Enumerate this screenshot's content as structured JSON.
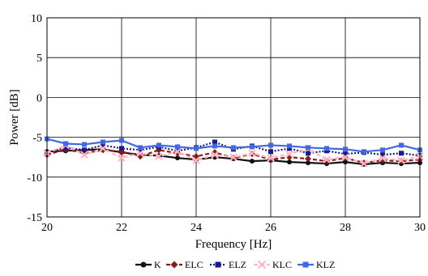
{
  "chart_data": {
    "type": "line",
    "title": "",
    "xlabel": "Frequency [Hz]",
    "ylabel": "Power [dB]",
    "xlim": [
      20,
      30
    ],
    "ylim": [
      -15,
      10
    ],
    "x_ticks": [
      "20",
      "22",
      "24",
      "26",
      "28",
      "30"
    ],
    "y_ticks": [
      "10",
      "5",
      "0",
      "-5",
      "-10",
      "-15"
    ],
    "grid": true,
    "legend_position": "bottom",
    "x": [
      20.0,
      20.5,
      21.0,
      21.5,
      22.0,
      22.5,
      23.0,
      23.5,
      24.0,
      24.5,
      25.0,
      25.5,
      26.0,
      26.5,
      27.0,
      27.5,
      28.0,
      28.5,
      29.0,
      29.5,
      30.0
    ],
    "series": [
      {
        "name": "K",
        "color": "#111111",
        "marker": "circle",
        "dash": "none",
        "values": [
          -6.8,
          -6.7,
          -6.6,
          -6.5,
          -6.9,
          -7.2,
          -7.3,
          -7.6,
          -7.8,
          -7.5,
          -7.7,
          -8.0,
          -7.9,
          -8.1,
          -8.2,
          -8.3,
          -8.1,
          -8.4,
          -8.2,
          -8.3,
          -8.2
        ]
      },
      {
        "name": "ELC",
        "color": "#8b1a1a",
        "marker": "diamond",
        "dash": "dash",
        "values": [
          -7.2,
          -6.5,
          -7.0,
          -6.6,
          -6.8,
          -7.4,
          -6.6,
          -7.0,
          -7.4,
          -6.9,
          -7.6,
          -7.1,
          -7.8,
          -7.5,
          -7.7,
          -8.0,
          -7.6,
          -8.2,
          -7.9,
          -8.0,
          -7.8
        ]
      },
      {
        "name": "ELZ",
        "color": "#1a1a8f",
        "marker": "square",
        "dash": "dot",
        "values": [
          -6.9,
          -6.3,
          -6.6,
          -6.0,
          -6.4,
          -6.6,
          -6.2,
          -6.7,
          -6.3,
          -5.6,
          -6.5,
          -6.1,
          -6.8,
          -6.4,
          -7.0,
          -6.7,
          -7.1,
          -6.9,
          -7.2,
          -7.0,
          -7.3
        ]
      },
      {
        "name": "KLC",
        "color": "#ffb6c1",
        "marker": "cross",
        "dash": "dash",
        "values": [
          -7.0,
          -6.0,
          -7.2,
          -6.4,
          -7.6,
          -7.0,
          -7.4,
          -6.8,
          -7.9,
          -7.2,
          -7.5,
          -7.0,
          -7.6,
          -7.1,
          -6.4,
          -7.8,
          -7.5,
          -8.3,
          -7.6,
          -7.9,
          -7.4
        ]
      },
      {
        "name": "KLZ",
        "color": "#4169e1",
        "marker": "square",
        "dash": "none",
        "values": [
          -5.2,
          -5.8,
          -5.9,
          -5.6,
          -5.4,
          -6.3,
          -6.0,
          -6.2,
          -6.4,
          -6.1,
          -6.3,
          -6.2,
          -6.0,
          -6.1,
          -6.3,
          -6.4,
          -6.5,
          -6.8,
          -6.6,
          -6.0,
          -6.6
        ]
      }
    ]
  }
}
